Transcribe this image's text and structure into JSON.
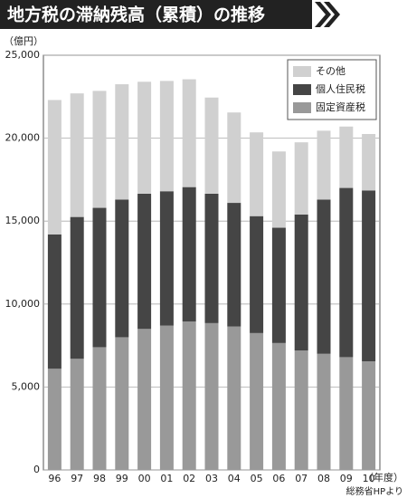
{
  "chart_data": {
    "type": "stacked-bar",
    "title": "地方税の滞納残高（累積）の推移",
    "y_unit": "（億円）",
    "x_unit": "（年度）",
    "source": "総務省HPより",
    "categories": [
      "96",
      "97",
      "98",
      "99",
      "00",
      "01",
      "02",
      "03",
      "04",
      "05",
      "06",
      "07",
      "08",
      "09",
      "10"
    ],
    "series": [
      {
        "name": "固定資産税",
        "color": "#999999",
        "values": [
          6100,
          6700,
          7400,
          8000,
          8500,
          8700,
          8950,
          8850,
          8650,
          8250,
          7650,
          7200,
          7000,
          6800,
          6550
        ]
      },
      {
        "name": "個人住民税",
        "color": "#454545",
        "values": [
          8100,
          8550,
          8400,
          8300,
          8150,
          8100,
          8100,
          7800,
          7450,
          7050,
          6950,
          8200,
          9300,
          10200,
          10300
        ]
      },
      {
        "name": "その他",
        "color": "#d0d0d0",
        "values": [
          8100,
          7450,
          7050,
          6950,
          6750,
          6650,
          6500,
          5800,
          5450,
          5050,
          4600,
          4350,
          4150,
          3700,
          3400
        ]
      }
    ],
    "ylim": [
      0,
      25000
    ],
    "yticks": [
      0,
      {
        "value": 5000,
        "label": "5,000"
      },
      {
        "value": 10000,
        "label": "10,000"
      },
      {
        "value": 15000,
        "label": "15,000"
      },
      {
        "value": 20000,
        "label": "20,000"
      },
      {
        "value": 25000,
        "label": "25,000"
      }
    ],
    "grid": true,
    "legend": "top-right"
  }
}
